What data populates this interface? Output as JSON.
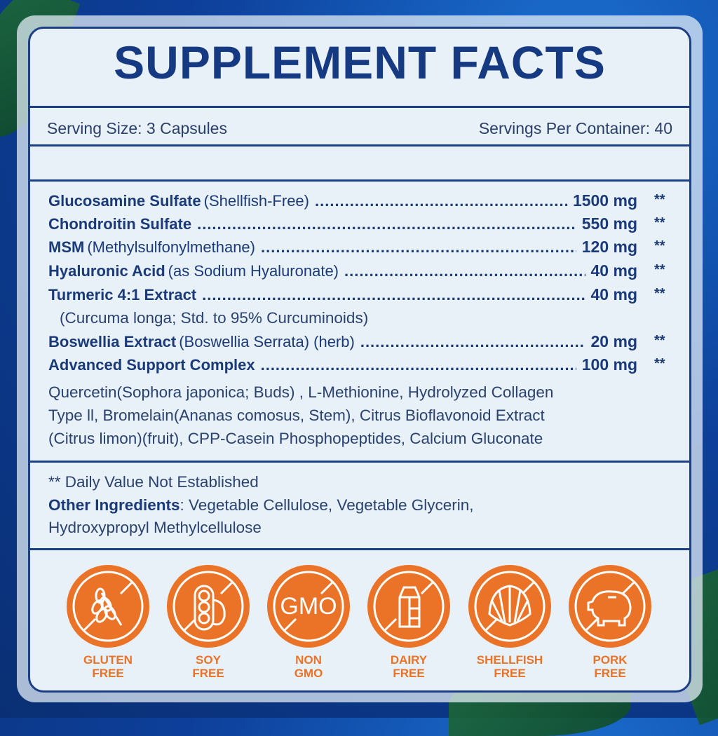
{
  "title": "SUPPLEMENT FACTS",
  "serving": {
    "size": "Serving Size: 3 Capsules",
    "per_container": "Servings Per Container: 40"
  },
  "ingredients": [
    {
      "name": "Glucosamine Sulfate",
      "note": "(Shellfish-Free)",
      "amount": "1500 mg",
      "dv": "**"
    },
    {
      "name": "Chondroitin Sulfate",
      "note": "",
      "amount": "550 mg",
      "dv": "**"
    },
    {
      "name": "MSM",
      "note": "(Methylsulfonylmethane)",
      "amount": "120 mg",
      "dv": "**"
    },
    {
      "name": "Hyaluronic Acid",
      "note": "(as Sodium Hyaluronate)",
      "amount": "40 mg",
      "dv": "**"
    },
    {
      "name": "Turmeric 4:1 Extract",
      "note": "",
      "amount": "40 mg",
      "dv": "**",
      "subnote": "(Curcuma longa; Std. to 95% Curcuminoids)"
    },
    {
      "name": "Boswellia Extract",
      "note": "(Boswellia Serrata) (herb)",
      "amount": "20 mg",
      "dv": "**"
    },
    {
      "name": "Advanced Support Complex",
      "note": "",
      "amount": "100 mg",
      "dv": "**"
    }
  ],
  "complex_lines": [
    "Quercetin(Sophora japonica; Buds) , L-Methionine, Hydrolyzed Collagen",
    "Type ll, Bromelain(Ananas comosus, Stem), Citrus Bioflavonoid Extract",
    "(Citrus limon)(fruit), CPP-Casein Phosphopeptides, Calcium Gluconate"
  ],
  "footer": {
    "dv_note": "** Daily Value Not Established",
    "other_label": "Other Ingredients",
    "other_line1": ":  Vegetable Cellulose, Vegetable Glycerin,",
    "other_line2": "Hydroxypropyl Methylcellulose"
  },
  "badges": [
    {
      "icon": "wheat-icon",
      "line1": "GLUTEN",
      "line2": "FREE"
    },
    {
      "icon": "soybean-icon",
      "line1": "SOY",
      "line2": "FREE"
    },
    {
      "icon": "gmo-icon",
      "line1": "NON",
      "line2": "GMO",
      "text": "GMO"
    },
    {
      "icon": "milk-carton-icon",
      "line1": "DAIRY",
      "line2": "FREE"
    },
    {
      "icon": "shell-icon",
      "line1": "SHELLFISH",
      "line2": "FREE"
    },
    {
      "icon": "pig-icon",
      "line1": "PORK",
      "line2": "FREE"
    }
  ],
  "colors": {
    "navy": "#1d3f86",
    "orange": "#ea7327",
    "panel": "#e8f0f8"
  }
}
